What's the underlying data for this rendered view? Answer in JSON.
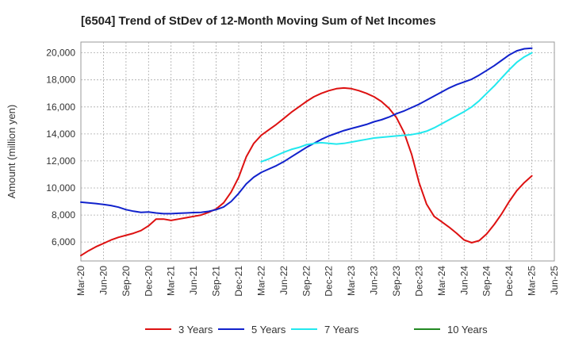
{
  "chart_data": {
    "type": "line",
    "title": "[6504]  Trend of StDev of 12-Month Moving Sum of Net Incomes",
    "xlabel": "",
    "ylabel": "Amount (million yen)",
    "ylim": [
      4600,
      20800
    ],
    "yticks": [
      6000,
      8000,
      10000,
      12000,
      14000,
      16000,
      18000,
      20000
    ],
    "ytick_labels": [
      "6,000",
      "8,000",
      "10,000",
      "12,000",
      "14,000",
      "16,000",
      "18,000",
      "20,000"
    ],
    "xticks": [
      "Mar-20",
      "Jun-20",
      "Sep-20",
      "Dec-20",
      "Mar-21",
      "Jun-21",
      "Sep-21",
      "Dec-21",
      "Mar-22",
      "Jun-22",
      "Sep-22",
      "Dec-22",
      "Mar-23",
      "Jun-23",
      "Sep-23",
      "Dec-23",
      "Mar-24",
      "Jun-24",
      "Sep-24",
      "Dec-24",
      "Mar-25",
      "Jun-25"
    ],
    "grid": true,
    "legend_position": "bottom",
    "series": [
      {
        "name": "3 Years",
        "color": "#dd1111",
        "start_month": 0,
        "values": [
          5000,
          5350,
          5650,
          5900,
          6150,
          6350,
          6500,
          6650,
          6850,
          7200,
          7700,
          7700,
          7600,
          7700,
          7800,
          7900,
          8000,
          8200,
          8450,
          8900,
          9700,
          10800,
          12300,
          13300,
          13900,
          14300,
          14700,
          15150,
          15600,
          16000,
          16400,
          16750,
          17000,
          17200,
          17350,
          17400,
          17350,
          17200,
          17000,
          16750,
          16400,
          15900,
          15200,
          14100,
          12500,
          10400,
          8800,
          7900,
          7500,
          7100,
          6650,
          6150,
          5950,
          6100,
          6600,
          7300,
          8100,
          9000,
          9800,
          10400,
          10900
        ]
      },
      {
        "name": "5 Years",
        "color": "#1122cc",
        "start_month": 0,
        "values": [
          8950,
          8900,
          8850,
          8780,
          8700,
          8580,
          8400,
          8280,
          8200,
          8220,
          8150,
          8100,
          8100,
          8130,
          8150,
          8180,
          8200,
          8270,
          8400,
          8600,
          9000,
          9600,
          10300,
          10800,
          11150,
          11400,
          11650,
          11950,
          12300,
          12650,
          13000,
          13300,
          13600,
          13850,
          14050,
          14250,
          14400,
          14550,
          14700,
          14900,
          15050,
          15250,
          15500,
          15700,
          15950,
          16200,
          16500,
          16800,
          17100,
          17400,
          17650,
          17850,
          18050,
          18350,
          18700,
          19050,
          19450,
          19850,
          20150,
          20300,
          20350
        ]
      },
      {
        "name": "7 Years",
        "color": "#22e8ee",
        "start_month": 24,
        "values": [
          11950,
          12150,
          12400,
          12650,
          12850,
          13000,
          13200,
          13300,
          13350,
          13300,
          13250,
          13300,
          13400,
          13500,
          13600,
          13700,
          13750,
          13800,
          13850,
          13900,
          13950,
          14050,
          14200,
          14450,
          14750,
          15050,
          15350,
          15650,
          16000,
          16450,
          17000,
          17550,
          18150,
          18750,
          19300,
          19700,
          20000
        ]
      },
      {
        "name": "10 Years",
        "color": "#228822",
        "start_month": 0,
        "values": []
      }
    ]
  }
}
